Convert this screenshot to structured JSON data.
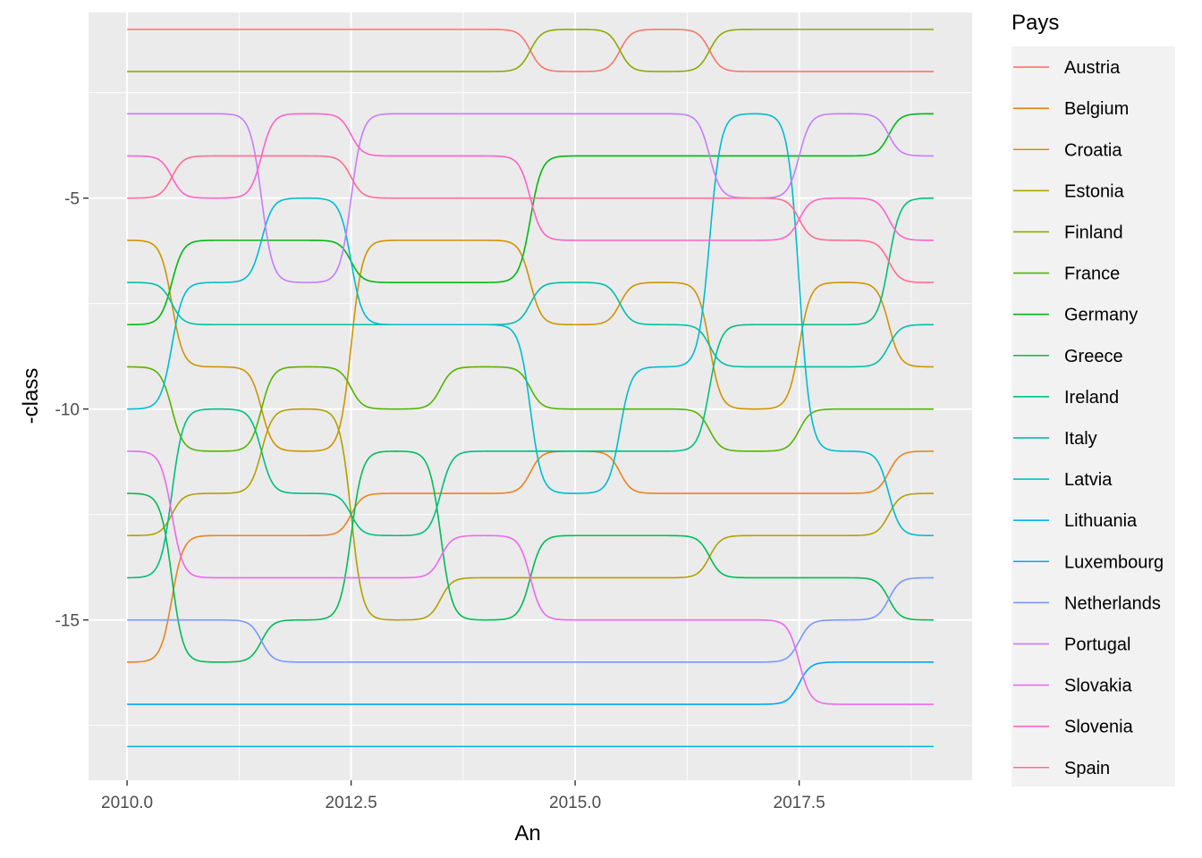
{
  "chart_data": {
    "type": "line",
    "xlabel": "An",
    "ylabel": "-class",
    "xlim": [
      2009.57,
      2019.43
    ],
    "ylim": [
      -18.8,
      -0.6
    ],
    "xticks": [
      2010,
      2012.5,
      2015,
      2017.5
    ],
    "xtick_labels": [
      "2010.0",
      "2012.5",
      "2015.0",
      "2017.5"
    ],
    "yticks": [
      -5,
      -10,
      -15
    ],
    "ytick_labels": [
      "-5",
      "-10",
      "-15"
    ],
    "grid": true,
    "legend": {
      "title": "Pays",
      "position": "right"
    },
    "x": [
      2010,
      2011,
      2012,
      2013,
      2014,
      2015,
      2016,
      2017,
      2018,
      2019
    ],
    "series": [
      {
        "name": "Austria",
        "color": "#F8766D",
        "values": [
          -1,
          -1,
          -1,
          -1,
          -1,
          -2,
          -1,
          -2,
          -2,
          -2
        ]
      },
      {
        "name": "Belgium",
        "color": "#E7851E",
        "values": [
          -16,
          -13,
          -13,
          -12,
          -12,
          -11,
          -12,
          -12,
          -12,
          -11
        ]
      },
      {
        "name": "Croatia",
        "color": "#D09400",
        "values": [
          -6,
          -9,
          -11,
          -6,
          -6,
          -8,
          -7,
          -10,
          -7,
          -9
        ]
      },
      {
        "name": "Estonia",
        "color": "#B2A100",
        "values": [
          -13,
          -12,
          -10,
          -15,
          -14,
          -14,
          -14,
          -13,
          -13,
          -12
        ]
      },
      {
        "name": "Finland",
        "color": "#8BAB00",
        "values": [
          -2,
          -2,
          -2,
          -2,
          -2,
          -1,
          -2,
          -1,
          -1,
          -1
        ]
      },
      {
        "name": "France",
        "color": "#55B300",
        "values": [
          -9,
          -11,
          -9,
          -10,
          -9,
          -10,
          -10,
          -11,
          -10,
          -10
        ]
      },
      {
        "name": "Germany",
        "color": "#00B813",
        "values": [
          -8,
          -6,
          -6,
          -7,
          -7,
          -4,
          -4,
          -4,
          -4,
          -3
        ]
      },
      {
        "name": "Greece",
        "color": "#00BC56",
        "values": [
          -12,
          -16,
          -15,
          -11,
          -15,
          -13,
          -13,
          -14,
          -14,
          -15
        ]
      },
      {
        "name": "Ireland",
        "color": "#00BE83",
        "values": [
          -14,
          -10,
          -12,
          -13,
          -11,
          -11,
          -11,
          -8,
          -8,
          -5
        ]
      },
      {
        "name": "Italy",
        "color": "#00BFAA",
        "values": [
          -7,
          -8,
          -8,
          -8,
          -8,
          -7,
          -8,
          -9,
          -9,
          -8
        ]
      },
      {
        "name": "Latvia",
        "color": "#00BCD0",
        "values": [
          -10,
          -7,
          -5,
          -8,
          -8,
          -12,
          -9,
          -3,
          -11,
          -13
        ]
      },
      {
        "name": "Lithuania",
        "color": "#00B4EF",
        "values": [
          -18,
          -18,
          -18,
          -18,
          -18,
          -18,
          -18,
          -18,
          -18,
          -18
        ]
      },
      {
        "name": "Luxembourg",
        "color": "#00A5FF",
        "values": [
          -17,
          -17,
          -17,
          -17,
          -17,
          -17,
          -17,
          -17,
          -16,
          -16
        ]
      },
      {
        "name": "Netherlands",
        "color": "#7B96FF",
        "values": [
          -15,
          -15,
          -16,
          -16,
          -16,
          -16,
          -16,
          -16,
          -15,
          -14
        ]
      },
      {
        "name": "Portugal",
        "color": "#C77CFF",
        "values": [
          -3,
          -3,
          -7,
          -3,
          -3,
          -3,
          -3,
          -5,
          -3,
          -4
        ]
      },
      {
        "name": "Slovakia",
        "color": "#ED68ED",
        "values": [
          -11,
          -14,
          -14,
          -14,
          -13,
          -15,
          -15,
          -15,
          -17,
          -17
        ]
      },
      {
        "name": "Slovenia",
        "color": "#FF61C9",
        "values": [
          -4,
          -5,
          -3,
          -4,
          -4,
          -6,
          -6,
          -6,
          -5,
          -6
        ]
      },
      {
        "name": "Spain",
        "color": "#FF6C91",
        "values": [
          -5,
          -4,
          -4,
          -5,
          -5,
          -5,
          -5,
          -5,
          -6,
          -7
        ]
      }
    ]
  }
}
